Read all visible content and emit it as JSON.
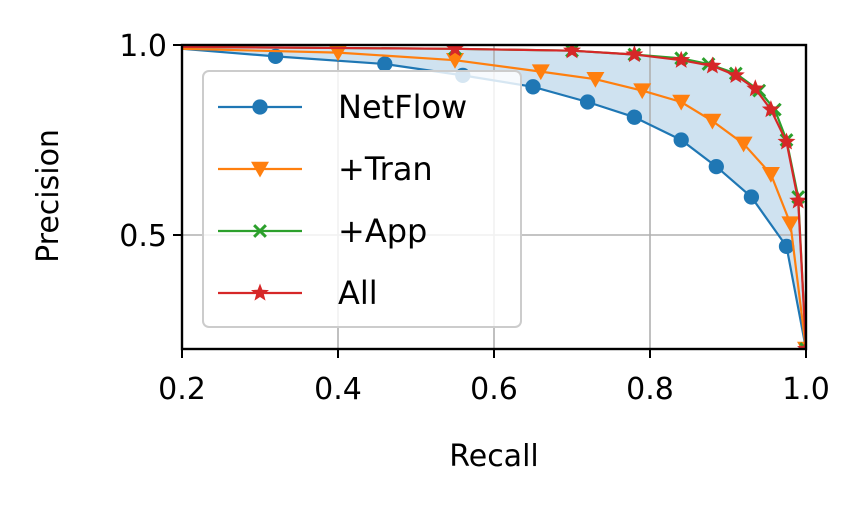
{
  "chart_data": {
    "type": "line",
    "title": "",
    "xlabel": "Recall",
    "ylabel": "Precision",
    "xlim": [
      0.2,
      1.0
    ],
    "ylim": [
      0.2,
      1.0
    ],
    "xticks": [
      "0.2",
      "0.4",
      "0.6",
      "0.8",
      "1.0"
    ],
    "yticks": [
      "0.5",
      "1.0"
    ],
    "grid": true,
    "legend_position": "upper-left",
    "shaded_region": {
      "between": [
        "NetFlow",
        "All"
      ],
      "color": "#cfe2f0"
    },
    "series": [
      {
        "name": "NetFlow",
        "color": "#1f77b4",
        "marker": "circle",
        "x": [
          0.2,
          0.32,
          0.46,
          0.56,
          0.65,
          0.72,
          0.78,
          0.84,
          0.885,
          0.93,
          0.975,
          1.0
        ],
        "y": [
          0.99,
          0.97,
          0.95,
          0.92,
          0.89,
          0.85,
          0.81,
          0.75,
          0.68,
          0.6,
          0.47,
          0.2
        ]
      },
      {
        "name": "+Tran",
        "color": "#ff7f0e",
        "marker": "triangle-down",
        "x": [
          0.2,
          0.4,
          0.55,
          0.66,
          0.73,
          0.79,
          0.84,
          0.88,
          0.92,
          0.955,
          0.98,
          1.0
        ],
        "y": [
          0.99,
          0.98,
          0.96,
          0.93,
          0.91,
          0.88,
          0.85,
          0.8,
          0.74,
          0.66,
          0.53,
          0.2
        ]
      },
      {
        "name": "+App",
        "color": "#2ca02c",
        "marker": "x",
        "x": [
          0.2,
          0.55,
          0.7,
          0.78,
          0.84,
          0.875,
          0.91,
          0.94,
          0.96,
          0.975,
          0.99,
          1.0
        ],
        "y": [
          0.995,
          0.99,
          0.985,
          0.975,
          0.965,
          0.95,
          0.925,
          0.88,
          0.83,
          0.75,
          0.6,
          0.2
        ]
      },
      {
        "name": "All",
        "color": "#d62728",
        "marker": "star",
        "x": [
          0.2,
          0.55,
          0.7,
          0.78,
          0.84,
          0.88,
          0.91,
          0.935,
          0.955,
          0.975,
          0.99,
          1.0
        ],
        "y": [
          0.995,
          0.99,
          0.985,
          0.975,
          0.96,
          0.945,
          0.92,
          0.885,
          0.83,
          0.745,
          0.59,
          0.2
        ]
      }
    ]
  }
}
